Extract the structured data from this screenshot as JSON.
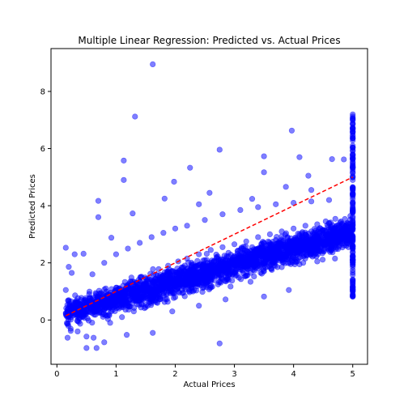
{
  "chart_data": {
    "type": "scatter",
    "title": "Multiple Linear Regression: Predicted vs. Actual Prices",
    "xlabel": "Actual Prices",
    "ylabel": "Predicted Prices",
    "xlim": [
      -0.1,
      5.25
    ],
    "ylim": [
      -1.55,
      9.5
    ],
    "xticks": [
      0,
      1,
      2,
      3,
      4,
      5
    ],
    "yticks": [
      0,
      2,
      4,
      6,
      8
    ],
    "grid": false,
    "legend": "none",
    "series": [
      {
        "marker_color": "#0000ff",
        "marker_alpha": 0.5,
        "points": [
          [
            1.62,
            8.95
          ],
          [
            1.32,
            7.12
          ],
          [
            1.13,
            5.58
          ],
          [
            2.75,
            5.96
          ],
          [
            3.97,
            6.63
          ],
          [
            3.5,
            5.73
          ],
          [
            2.25,
            5.33
          ],
          [
            4.1,
            5.7
          ],
          [
            3.5,
            5.17
          ],
          [
            1.13,
            4.9
          ],
          [
            1.98,
            4.84
          ],
          [
            4.25,
            5.05
          ],
          [
            4.65,
            5.63
          ],
          [
            0.7,
            4.17
          ],
          [
            0.7,
            3.6
          ],
          [
            1.82,
            4.25
          ],
          [
            2.4,
            4.05
          ],
          [
            3.3,
            4.24
          ],
          [
            3.87,
            4.66
          ],
          [
            4.3,
            4.55
          ],
          [
            0.92,
            2.88
          ],
          [
            1.28,
            3.73
          ],
          [
            2.58,
            4.45
          ],
          [
            4.85,
            5.62
          ],
          [
            0.15,
            2.53
          ],
          [
            0.3,
            2.3
          ],
          [
            0.45,
            2.32
          ],
          [
            0.2,
            1.86
          ],
          [
            0.15,
            1.05
          ],
          [
            0.25,
            1.65
          ],
          [
            0.18,
            -0.62
          ],
          [
            0.35,
            -0.4
          ],
          [
            0.5,
            -0.98
          ],
          [
            0.5,
            -0.58
          ],
          [
            0.62,
            -0.62
          ],
          [
            0.67,
            -0.98
          ],
          [
            0.8,
            -0.78
          ],
          [
            1.18,
            -0.52
          ],
          [
            1.62,
            -0.45
          ],
          [
            2.75,
            -0.82
          ],
          [
            1.95,
            0.3
          ],
          [
            2.4,
            0.5
          ],
          [
            2.85,
            0.72
          ],
          [
            3.5,
            0.82
          ],
          [
            3.92,
            1.05
          ],
          [
            0.2,
            0.12
          ],
          [
            0.3,
            0.28
          ],
          [
            0.38,
            0.41
          ],
          [
            0.5,
            0.3
          ],
          [
            0.55,
            0.6
          ],
          [
            0.62,
            0.45
          ],
          [
            0.7,
            0.75
          ],
          [
            0.78,
            0.55
          ],
          [
            0.85,
            0.9
          ],
          [
            0.92,
            0.7
          ],
          [
            1.0,
            1.05
          ],
          [
            1.05,
            0.8
          ],
          [
            1.12,
            1.2
          ],
          [
            1.2,
            0.95
          ],
          [
            1.28,
            1.35
          ],
          [
            1.35,
            1.1
          ],
          [
            1.42,
            1.5
          ],
          [
            1.5,
            1.25
          ],
          [
            1.58,
            1.62
          ],
          [
            1.65,
            1.4
          ],
          [
            1.72,
            1.78
          ],
          [
            1.8,
            1.55
          ],
          [
            1.88,
            1.9
          ],
          [
            1.95,
            1.7
          ],
          [
            2.05,
            2.05
          ],
          [
            2.12,
            1.82
          ],
          [
            2.2,
            2.15
          ],
          [
            2.3,
            1.95
          ],
          [
            2.4,
            2.3
          ],
          [
            2.5,
            2.1
          ],
          [
            2.6,
            2.45
          ],
          [
            2.7,
            2.2
          ],
          [
            2.8,
            2.55
          ],
          [
            2.9,
            2.35
          ],
          [
            3.0,
            2.65
          ],
          [
            3.1,
            2.45
          ],
          [
            3.2,
            2.75
          ],
          [
            3.3,
            2.55
          ],
          [
            3.4,
            2.9
          ],
          [
            3.5,
            2.7
          ],
          [
            3.6,
            3.0
          ],
          [
            3.7,
            2.8
          ],
          [
            3.8,
            3.1
          ],
          [
            3.9,
            2.9
          ],
          [
            4.0,
            3.2
          ],
          [
            4.1,
            3.0
          ],
          [
            4.2,
            3.3
          ],
          [
            4.3,
            3.1
          ],
          [
            4.4,
            3.35
          ],
          [
            4.5,
            3.15
          ],
          [
            4.6,
            3.4
          ],
          [
            4.7,
            3.2
          ],
          [
            4.8,
            3.45
          ],
          [
            4.9,
            3.25
          ],
          [
            0.6,
            1.6
          ],
          [
            0.8,
            2.0
          ],
          [
            1.0,
            2.3
          ],
          [
            1.2,
            2.5
          ],
          [
            1.4,
            2.7
          ],
          [
            1.6,
            2.9
          ],
          [
            1.8,
            3.05
          ],
          [
            2.0,
            3.2
          ],
          [
            2.2,
            3.3
          ],
          [
            2.5,
            3.5
          ],
          [
            2.8,
            3.7
          ],
          [
            3.1,
            3.85
          ],
          [
            3.4,
            3.95
          ],
          [
            3.7,
            4.05
          ],
          [
            4.0,
            4.1
          ],
          [
            4.3,
            4.15
          ],
          [
            4.6,
            4.2
          ],
          [
            0.9,
            -0.1
          ],
          [
            1.1,
            0.1
          ],
          [
            1.3,
            0.3
          ],
          [
            1.5,
            0.45
          ],
          [
            1.7,
            0.6
          ],
          [
            2.0,
            0.8
          ],
          [
            2.3,
            1.0
          ],
          [
            2.6,
            1.2
          ],
          [
            2.9,
            1.4
          ],
          [
            3.2,
            1.55
          ],
          [
            3.5,
            1.7
          ],
          [
            3.8,
            1.85
          ],
          [
            4.1,
            1.95
          ],
          [
            4.4,
            2.05
          ],
          [
            4.7,
            2.15
          ]
        ]
      }
    ],
    "reference_line": {
      "from": [
        0.15,
        0.15
      ],
      "to": [
        5.0,
        5.0
      ],
      "color": "#ff0000",
      "style": "dashed"
    },
    "dense_cloud": {
      "line_fit": {
        "x_start": 0.15,
        "x_end": 5.0,
        "y_at_start": 0.25,
        "y_at_end": 3.1
      },
      "column_x": 5.0,
      "column_y_range": [
        0.8,
        7.2
      ]
    }
  }
}
